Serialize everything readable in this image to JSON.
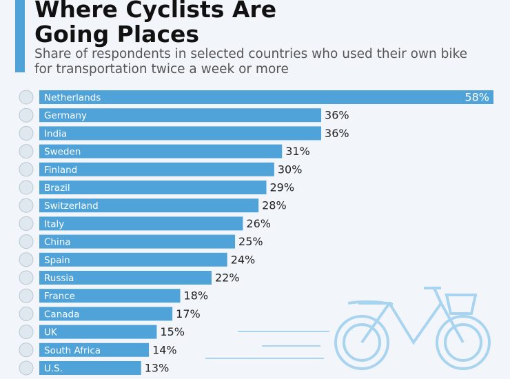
{
  "chart_data": {
    "type": "bar",
    "orientation": "horizontal",
    "title": "Where Cyclists Are Going Places",
    "subtitle": "Share of respondents in selected countries who used their own bike for transportation twice a week or more",
    "categories": [
      "Netherlands",
      "Germany",
      "India",
      "Sweden",
      "Finland",
      "Brazil",
      "Switzerland",
      "Italy",
      "China",
      "Spain",
      "Russia",
      "France",
      "Canada",
      "UK",
      "South Africa",
      "U.S."
    ],
    "values": [
      58,
      36,
      36,
      31,
      30,
      29,
      28,
      26,
      25,
      24,
      22,
      18,
      17,
      15,
      14,
      13
    ],
    "value_labels": [
      "58%",
      "36%",
      "36%",
      "31%",
      "30%",
      "29%",
      "28%",
      "26%",
      "25%",
      "24%",
      "22%",
      "18%",
      "17%",
      "15%",
      "14%",
      "13%"
    ],
    "color": "#4fa3d9"
  }
}
